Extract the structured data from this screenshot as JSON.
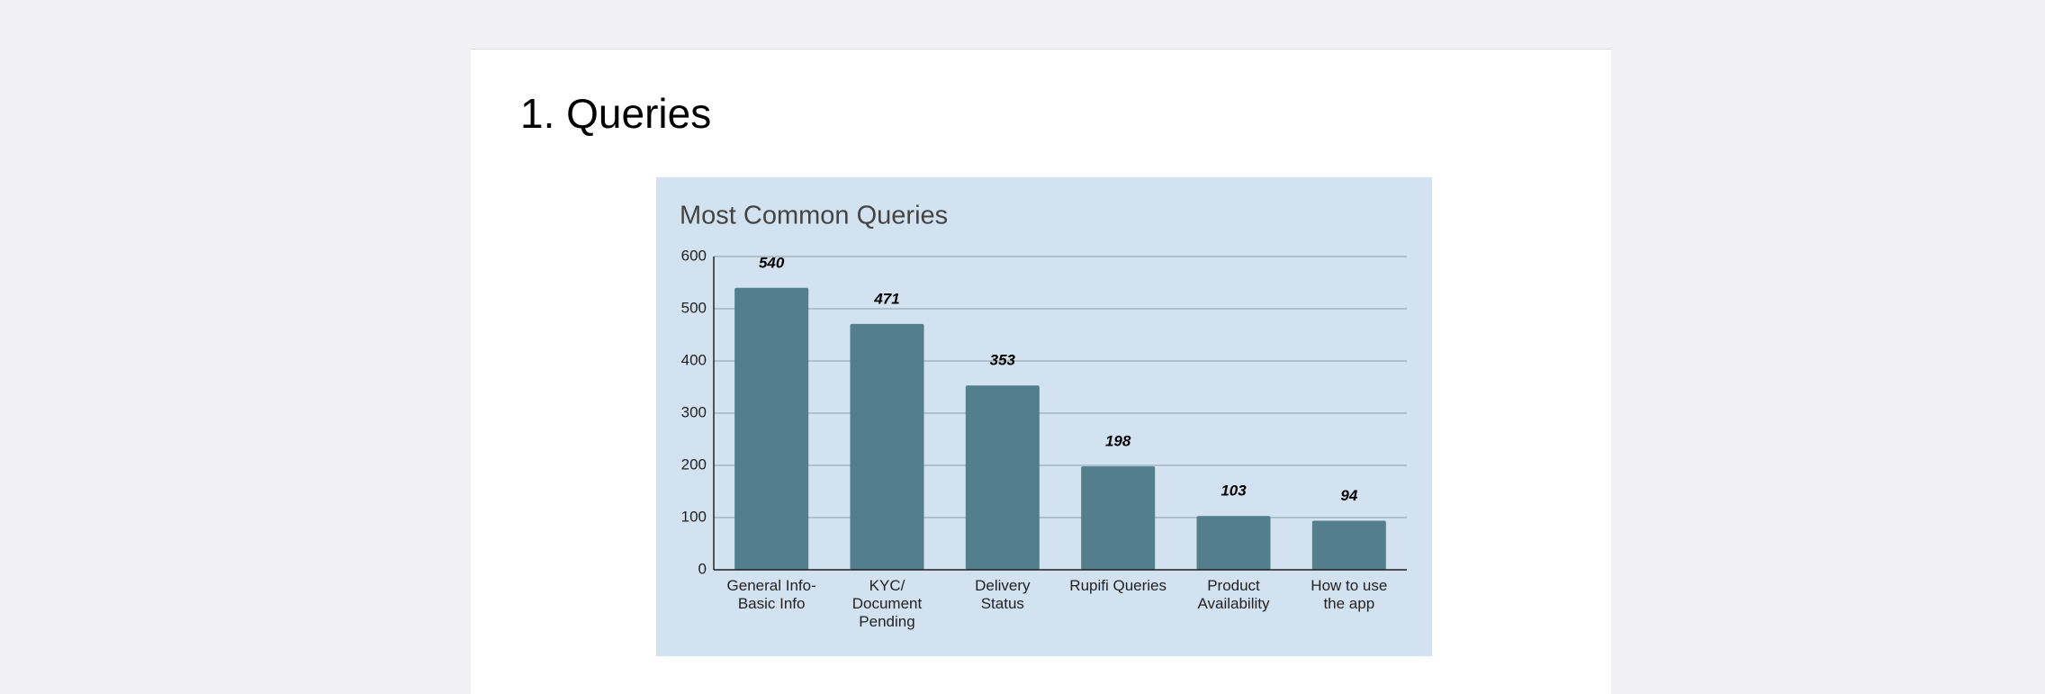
{
  "heading": "1. Queries",
  "chart_data": {
    "type": "bar",
    "title": "Most Common Queries",
    "categories": [
      "General Info-\nBasic Info",
      "KYC/\nDocument\nPending",
      "Delivery\nStatus",
      "Rupifi Queries",
      "Product\nAvailability",
      "How to use\nthe app"
    ],
    "values": [
      540,
      471,
      353,
      198,
      103,
      94
    ],
    "color": "#537f8c",
    "ylim": [
      0,
      600
    ],
    "yticks": [
      0,
      100,
      200,
      300,
      400,
      500,
      600
    ],
    "grid": true
  }
}
